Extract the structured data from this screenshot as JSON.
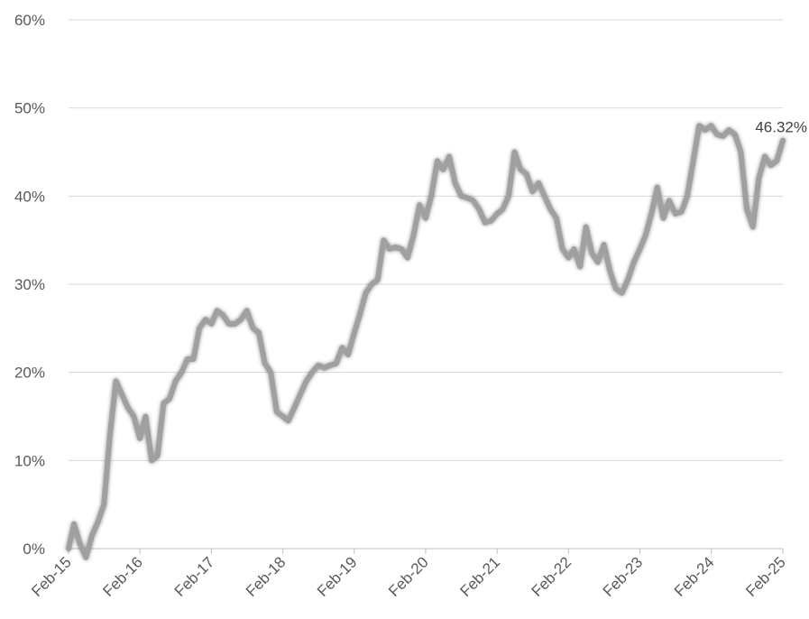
{
  "chart_data": {
    "type": "line",
    "title": "",
    "xlabel": "",
    "ylabel": "",
    "ylim": [
      0,
      60
    ],
    "y_tick_values": [
      0,
      10,
      20,
      30,
      40,
      50,
      60
    ],
    "y_tick_labels": [
      "0%",
      "10%",
      "20%",
      "30%",
      "40%",
      "50%",
      "60%"
    ],
    "x_tick_labels": [
      "Feb-15",
      "Feb-16",
      "Feb-17",
      "Feb-18",
      "Feb-19",
      "Feb-20",
      "Feb-21",
      "Feb-22",
      "Feb-23",
      "Feb-24",
      "Feb-25"
    ],
    "x_tick_dates": [
      "2015-02",
      "2016-02",
      "2017-02",
      "2018-02",
      "2019-02",
      "2020-02",
      "2021-02",
      "2022-02",
      "2023-02",
      "2024-02",
      "2025-02"
    ],
    "grid": true,
    "line_color": "#a0a0a0",
    "annotation": {
      "text": "46.32%",
      "x": "2025-02",
      "y": 46.32
    },
    "series": [
      {
        "x": [
          "2015-02",
          "2015-03",
          "2015-04",
          "2015-05",
          "2015-06",
          "2015-07",
          "2015-08",
          "2015-09",
          "2015-10",
          "2015-11",
          "2015-12",
          "2016-01",
          "2016-02",
          "2016-03",
          "2016-04",
          "2016-05",
          "2016-06",
          "2016-07",
          "2016-08",
          "2016-09",
          "2016-10",
          "2016-11",
          "2016-12",
          "2017-01",
          "2017-02",
          "2017-03",
          "2017-04",
          "2017-05",
          "2017-06",
          "2017-07",
          "2017-08",
          "2017-09",
          "2017-10",
          "2017-11",
          "2017-12",
          "2018-01",
          "2018-02",
          "2018-03",
          "2018-04",
          "2018-05",
          "2018-06",
          "2018-07",
          "2018-08",
          "2018-09",
          "2018-10",
          "2018-11",
          "2018-12",
          "2019-01",
          "2019-02",
          "2019-03",
          "2019-04",
          "2019-05",
          "2019-06",
          "2019-07",
          "2019-08",
          "2019-09",
          "2019-10",
          "2019-11",
          "2019-12",
          "2020-01",
          "2020-02",
          "2020-03",
          "2020-04",
          "2020-05",
          "2020-06",
          "2020-07",
          "2020-08",
          "2020-09",
          "2020-10",
          "2020-11",
          "2020-12",
          "2021-01",
          "2021-02",
          "2021-03",
          "2021-04",
          "2021-05",
          "2021-06",
          "2021-07",
          "2021-08",
          "2021-09",
          "2021-10",
          "2021-11",
          "2021-12",
          "2022-01",
          "2022-02",
          "2022-03",
          "2022-04",
          "2022-05",
          "2022-06",
          "2022-07",
          "2022-08",
          "2022-09",
          "2022-10",
          "2022-11",
          "2022-12",
          "2023-01",
          "2023-02",
          "2023-03",
          "2023-04",
          "2023-05",
          "2023-06",
          "2023-07",
          "2023-08",
          "2023-09",
          "2023-10",
          "2023-11",
          "2023-12",
          "2024-01",
          "2024-02",
          "2024-03",
          "2024-04",
          "2024-05",
          "2024-06",
          "2024-07",
          "2024-08",
          "2024-09",
          "2024-10",
          "2024-11",
          "2024-12",
          "2025-01",
          "2025-02"
        ],
        "values": [
          0.0,
          2.8,
          0.5,
          -1.0,
          1.5,
          3.0,
          5.0,
          13.0,
          19.0,
          17.5,
          16.0,
          15.0,
          12.5,
          15.0,
          10.0,
          10.5,
          16.5,
          17.0,
          19.0,
          20.0,
          21.5,
          21.5,
          25.0,
          26.0,
          25.5,
          27.0,
          26.5,
          25.5,
          25.5,
          26.0,
          27.0,
          25.0,
          24.5,
          21.0,
          20.0,
          15.5,
          15.0,
          14.5,
          16.0,
          17.5,
          19.0,
          20.0,
          20.8,
          20.5,
          20.8,
          21.0,
          22.8,
          22.0,
          24.5,
          26.5,
          29.0,
          30.0,
          30.5,
          35.0,
          34.0,
          34.2,
          34.0,
          33.0,
          35.5,
          39.0,
          37.5,
          40.0,
          44.0,
          43.0,
          44.5,
          41.5,
          40.0,
          39.8,
          39.5,
          38.5,
          37.0,
          37.2,
          38.0,
          38.5,
          40.0,
          45.0,
          43.0,
          42.5,
          40.5,
          41.5,
          40.0,
          38.5,
          37.5,
          34.0,
          33.0,
          34.0,
          32.0,
          36.5,
          33.5,
          32.5,
          34.5,
          31.5,
          29.5,
          29.0,
          30.5,
          32.5,
          34.0,
          35.5,
          38.0,
          41.0,
          37.5,
          39.5,
          38.0,
          38.2,
          40.0,
          44.0,
          48.0,
          47.5,
          48.0,
          47.0,
          46.8,
          47.5,
          47.0,
          45.0,
          38.5,
          36.5,
          42.0,
          44.5,
          43.5,
          44.0,
          46.32
        ]
      }
    ]
  }
}
